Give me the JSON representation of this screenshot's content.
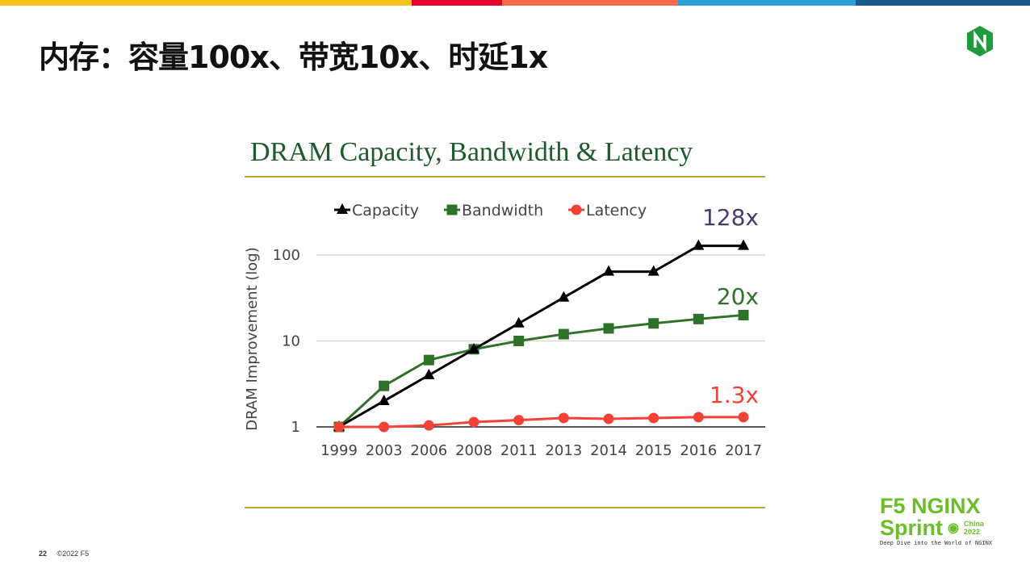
{
  "slide": {
    "title": "内存：容量100x、带宽10x、时延1x",
    "page_number": "22",
    "copyright": "©2022 F5",
    "top_bar_colors": [
      "#f5c51e",
      "#e4002b",
      "#f26b4b",
      "#2d9fd9",
      "#185a8c"
    ],
    "brand": {
      "line1": "F5 NGINX",
      "line2": "Sprint",
      "region": "China",
      "year": "2022",
      "tagline": "Deep Dive into the World of NGINX",
      "color": "#6cbd2a"
    },
    "logo": "nginx-hexagon-logo"
  },
  "chart_data": {
    "type": "line",
    "title": "DRAM Capacity, Bandwidth & Latency",
    "ylabel": "DRAM Improvement (log)",
    "xlabel": "",
    "yscale": "log",
    "ylim": [
      1,
      200
    ],
    "yticks": [
      "1",
      "10",
      "100"
    ],
    "grid": true,
    "legend": "top",
    "categories": [
      "1999",
      "2003",
      "2006",
      "2008",
      "2011",
      "2013",
      "2014",
      "2015",
      "2016",
      "2017"
    ],
    "series": [
      {
        "name": "Capacity",
        "color": "#000000",
        "marker": "triangle",
        "values": [
          1,
          2,
          4,
          8,
          16,
          32,
          64,
          64,
          128,
          128
        ]
      },
      {
        "name": "Bandwidth",
        "color": "#2e7128",
        "marker": "square",
        "values": [
          1,
          3,
          6,
          8,
          10,
          12,
          14,
          16,
          18,
          20
        ]
      },
      {
        "name": "Latency",
        "color": "#f44336",
        "marker": "circle",
        "values": [
          1,
          1,
          1.04,
          1.14,
          1.2,
          1.27,
          1.24,
          1.27,
          1.3,
          1.3
        ]
      }
    ],
    "annotations": [
      {
        "text": "128x",
        "color": "#4b3a6b"
      },
      {
        "text": "20x",
        "color": "#2e7128"
      },
      {
        "text": "1.3x",
        "color": "#f44336"
      }
    ]
  }
}
